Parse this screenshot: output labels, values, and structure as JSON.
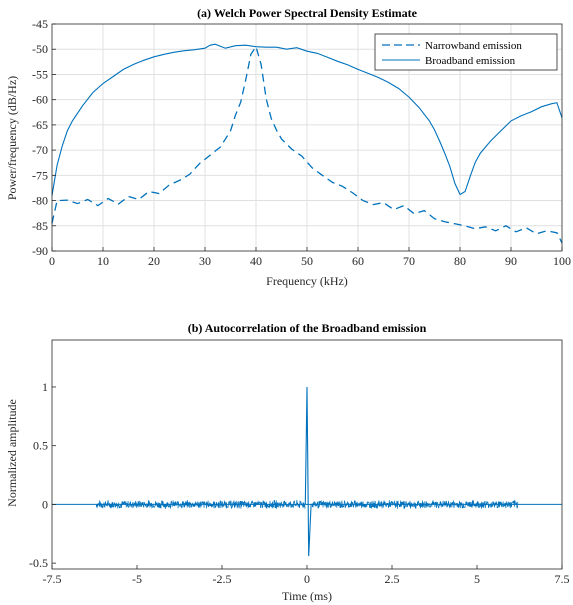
{
  "chart_data": [
    {
      "type": "line",
      "title": "(a) Welch Power Spectral Density Estimate",
      "xlabel": "Frequency (kHz)",
      "ylabel": "Power/frequency (dB/Hz)",
      "xlim": [
        0,
        100
      ],
      "ylim": [
        -90,
        -45
      ],
      "xticks": [
        0,
        10,
        20,
        30,
        40,
        50,
        60,
        70,
        80,
        90,
        100
      ],
      "yticks": [
        -90,
        -85,
        -80,
        -75,
        -70,
        -65,
        -60,
        -55,
        -50,
        -45
      ],
      "grid": true,
      "legend_position": "top-right",
      "color": "#0072BD",
      "series": [
        {
          "name": "Narrowband emission",
          "style": "dashed",
          "x": [
            0,
            1,
            3,
            5,
            7,
            9,
            11,
            13,
            15,
            17,
            19,
            21,
            23,
            25,
            27,
            29,
            31,
            33,
            35,
            36,
            37,
            38,
            39,
            40,
            41,
            42,
            43,
            44,
            45,
            47,
            49,
            51,
            53,
            55,
            57,
            59,
            61,
            63,
            65,
            67,
            69,
            71,
            73,
            75,
            77,
            79,
            81,
            83,
            85,
            87,
            89,
            91,
            93,
            95,
            97,
            99,
            100
          ],
          "y": [
            -84.5,
            -80.0,
            -79.9,
            -80.6,
            -79.8,
            -81.0,
            -79.6,
            -80.7,
            -79.2,
            -79.8,
            -78.2,
            -78.6,
            -76.9,
            -76.0,
            -74.8,
            -72.6,
            -71.0,
            -69.4,
            -66.2,
            -63.0,
            -60.5,
            -56.0,
            -51.0,
            -49.5,
            -53.0,
            -59.8,
            -63.8,
            -66.0,
            -67.8,
            -69.8,
            -71.2,
            -73.5,
            -75.0,
            -76.4,
            -77.2,
            -78.5,
            -80.0,
            -80.8,
            -80.4,
            -81.8,
            -81.0,
            -82.6,
            -82.0,
            -83.6,
            -84.2,
            -84.6,
            -85.0,
            -85.6,
            -85.2,
            -86.0,
            -85.0,
            -86.2,
            -85.4,
            -86.6,
            -86.0,
            -86.4,
            -88.4
          ]
        },
        {
          "name": "Broadband emission",
          "style": "solid",
          "x": [
            0,
            1,
            2,
            3,
            4,
            6,
            8,
            10,
            12,
            14,
            16,
            18,
            20,
            22,
            24,
            26,
            28,
            30,
            31,
            32,
            33,
            34,
            36,
            38,
            40,
            42,
            44,
            46,
            48,
            50,
            52,
            54,
            56,
            58,
            60,
            62,
            64,
            66,
            68,
            70,
            72,
            74,
            75,
            76,
            77,
            78,
            79,
            80,
            81,
            82,
            83,
            84,
            86,
            88,
            90,
            92,
            94,
            96,
            98,
            99,
            100
          ],
          "y": [
            -79.0,
            -73.0,
            -69.2,
            -66.2,
            -64.2,
            -61.2,
            -58.6,
            -56.8,
            -55.4,
            -54.0,
            -53.0,
            -52.2,
            -51.5,
            -51.0,
            -50.6,
            -50.3,
            -50.1,
            -49.8,
            -49.2,
            -49.0,
            -49.4,
            -49.8,
            -49.3,
            -49.2,
            -49.5,
            -49.6,
            -49.6,
            -50.0,
            -49.7,
            -50.4,
            -50.8,
            -51.6,
            -52.4,
            -53.1,
            -54.0,
            -54.8,
            -55.6,
            -56.6,
            -57.8,
            -59.5,
            -61.6,
            -64.2,
            -66.0,
            -68.2,
            -70.6,
            -73.2,
            -76.6,
            -78.8,
            -78.2,
            -75.2,
            -72.4,
            -70.6,
            -68.2,
            -66.2,
            -64.2,
            -63.2,
            -62.4,
            -61.4,
            -60.8,
            -60.6,
            -63.6
          ]
        }
      ]
    },
    {
      "type": "line",
      "title": "(b) Autocorrelation of the Broadband emission",
      "xlabel": "Time (ms)",
      "ylabel": "Normalized amplitude",
      "xlim": [
        -7.5,
        7.5
      ],
      "ylim": [
        -0.55,
        1.4
      ],
      "xticks": [
        -7.5,
        -5,
        -2.5,
        0,
        2.5,
        5,
        7.5
      ],
      "xtick_labels": [
        "-7.5",
        "-5",
        "-2.5",
        "0",
        "2.5",
        "5",
        "7.5"
      ],
      "yticks": [
        -0.5,
        0,
        0.5,
        1
      ],
      "ytick_labels": [
        "-0.5",
        "0",
        "0.5",
        "1"
      ],
      "grid": false,
      "color": "#0072BD",
      "series": [
        {
          "style": "solid",
          "x": [
            -7.5,
            -6.2,
            0,
            0.05,
            0.12,
            6.2,
            7.5
          ],
          "y": [
            0,
            0,
            1.0,
            -0.44,
            0,
            0,
            0
          ],
          "noise_band_ms": [
            -6.2,
            6.2
          ],
          "noise_amplitude": 0.04
        }
      ]
    }
  ]
}
